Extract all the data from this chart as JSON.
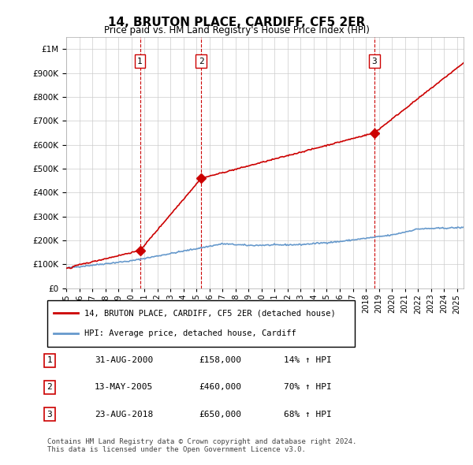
{
  "title": "14, BRUTON PLACE, CARDIFF, CF5 2ER",
  "subtitle": "Price paid vs. HM Land Registry's House Price Index (HPI)",
  "ylabel_ticks": [
    "£0",
    "£100K",
    "£200K",
    "£300K",
    "£400K",
    "£500K",
    "£600K",
    "£700K",
    "£800K",
    "£900K",
    "£1M"
  ],
  "ytick_vals": [
    0,
    100000,
    200000,
    300000,
    400000,
    500000,
    600000,
    700000,
    800000,
    900000,
    1000000
  ],
  "ylim": [
    0,
    1050000
  ],
  "xlim_start": 1995.0,
  "xlim_end": 2025.5,
  "hpi_color": "#6699cc",
  "price_color": "#cc0000",
  "sale_marker_color": "#cc0000",
  "grid_color": "#cccccc",
  "sale_vline_color": "#cc0000",
  "sale_label_bg": "#ffffff",
  "purchases": [
    {
      "year_float": 2000.66,
      "price": 158000,
      "label": "1"
    },
    {
      "year_float": 2005.36,
      "price": 460000,
      "label": "2"
    },
    {
      "year_float": 2018.65,
      "price": 650000,
      "label": "3"
    }
  ],
  "legend_items": [
    {
      "label": "14, BRUTON PLACE, CARDIFF, CF5 2ER (detached house)",
      "color": "#cc0000"
    },
    {
      "label": "HPI: Average price, detached house, Cardiff",
      "color": "#6699cc"
    }
  ],
  "table_rows": [
    {
      "num": "1",
      "date": "31-AUG-2000",
      "price": "£158,000",
      "hpi": "14% ↑ HPI"
    },
    {
      "num": "2",
      "date": "13-MAY-2005",
      "price": "£460,000",
      "hpi": "70% ↑ HPI"
    },
    {
      "num": "3",
      "date": "23-AUG-2018",
      "price": "£650,000",
      "hpi": "68% ↑ HPI"
    }
  ],
  "footer": "Contains HM Land Registry data © Crown copyright and database right 2024.\nThis data is licensed under the Open Government Licence v3.0.",
  "xtick_years": [
    1995,
    1996,
    1997,
    1998,
    1999,
    2000,
    2001,
    2002,
    2003,
    2004,
    2005,
    2006,
    2007,
    2008,
    2009,
    2010,
    2011,
    2012,
    2013,
    2014,
    2015,
    2016,
    2017,
    2018,
    2019,
    2020,
    2021,
    2022,
    2023,
    2024,
    2025
  ]
}
